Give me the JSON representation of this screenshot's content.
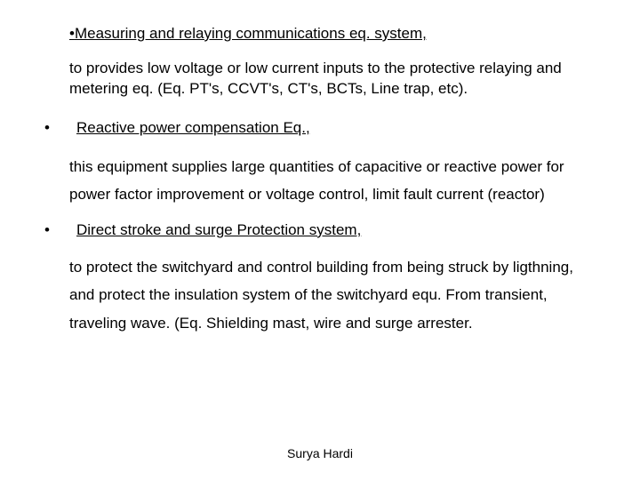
{
  "colors": {
    "background": "#ffffff",
    "text": "#000000"
  },
  "typography": {
    "font_family": "Arial",
    "body_fontsize": 17,
    "footer_fontsize": 14,
    "body_line_height": 1.85
  },
  "item1": {
    "bullet": "•",
    "title": "Measuring and relaying communications eq. system,",
    "body": "to provides low voltage or low current inputs to the protective relaying and metering eq. (Eq. PT's, CCVT's, CT's, BCTs, Line trap, etc)."
  },
  "item2": {
    "bullet": "•",
    "title": " Reactive power compensation Eq.,",
    "body": "this equipment supplies large quantities of capacitive or reactive power for power factor improvement or voltage control, limit fault current (reactor)"
  },
  "item3": {
    "bullet": "•",
    "title": "Direct stroke and surge Protection system,",
    "body": "to protect  the  switchyard and control building from being struck by ligthning, and protect the insulation system of the switchyard equ. From transient, traveling wave. (Eq. Shielding mast, wire and surge arrester."
  },
  "footer": "Surya Hardi"
}
